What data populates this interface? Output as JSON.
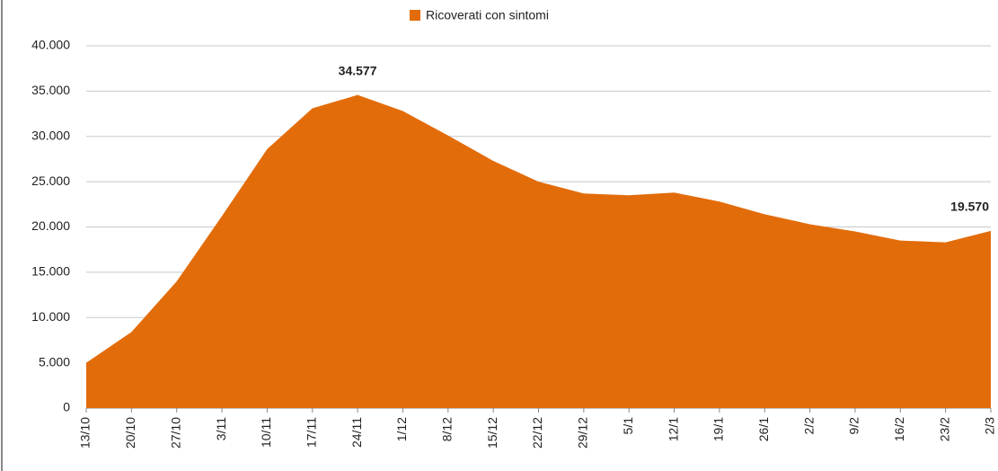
{
  "chart_data": {
    "type": "area",
    "categories": [
      "13/10",
      "20/10",
      "27/10",
      "3/11",
      "10/11",
      "17/11",
      "24/11",
      "1/12",
      "8/12",
      "15/12",
      "22/12",
      "29/12",
      "5/1",
      "12/1",
      "19/1",
      "26/1",
      "2/2",
      "9/2",
      "16/2",
      "23/2",
      "2/3"
    ],
    "series": [
      {
        "name": "Ricoverati con sintomi",
        "color": "#e36c0a",
        "values": [
          5000,
          8400,
          14000,
          21200,
          28600,
          33100,
          34577,
          32800,
          30100,
          27300,
          25000,
          23700,
          23500,
          23800,
          22800,
          21400,
          20300,
          19500,
          18500,
          18300,
          19570
        ],
        "value_labels": [
          null,
          null,
          null,
          null,
          null,
          null,
          "34.577",
          null,
          null,
          null,
          null,
          null,
          null,
          null,
          null,
          null,
          null,
          null,
          null,
          null,
          "19.570"
        ]
      }
    ],
    "ylim": [
      0,
      40000
    ],
    "yticks": [
      0,
      {
        "value": 5000,
        "label": "5.000"
      },
      {
        "value": 10000,
        "label": "10.000"
      },
      {
        "value": 15000,
        "label": "15.000"
      },
      {
        "value": 20000,
        "label": "20.000"
      },
      {
        "value": 25000,
        "label": "25.000"
      },
      {
        "value": 30000,
        "label": "30.000"
      },
      {
        "value": 35000,
        "label": "35.000"
      },
      {
        "value": 40000,
        "label": "40.000"
      }
    ],
    "grid": true,
    "legend": "top"
  }
}
